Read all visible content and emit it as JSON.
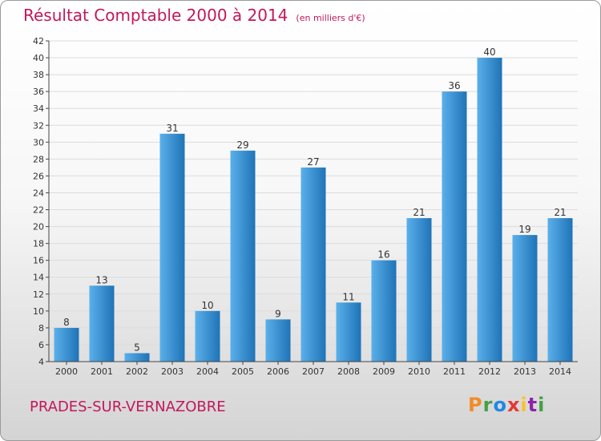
{
  "header": {
    "title": "Résultat Comptable 2000 à 2014",
    "unit": "(en milliers d'€)"
  },
  "footer": {
    "town": "PRADES-SUR-VERNAZOBRE",
    "logo": [
      "P",
      "r",
      "o",
      "x",
      "i",
      "t",
      "i"
    ],
    "logo_colors": [
      "#f28c28",
      "#43a047",
      "#1e88e5",
      "#e53935",
      "#fbc02d",
      "#8e24aa",
      "#43a047"
    ]
  },
  "colors": {
    "bar_light": "#5ab0ea",
    "bar_dark": "#1f73b7",
    "grid": "#dcdcdc",
    "axis": "#444444",
    "title": "#c2185b"
  },
  "chart_data": {
    "type": "bar",
    "title": "Résultat Comptable 2000 à 2014",
    "ylabel": "",
    "xlabel": "",
    "categories": [
      "2000",
      "2001",
      "2002",
      "2003",
      "2004",
      "2005",
      "2006",
      "2007",
      "2008",
      "2009",
      "2010",
      "2011",
      "2012",
      "2013",
      "2014"
    ],
    "values": [
      8,
      13,
      5,
      31,
      10,
      29,
      9,
      27,
      11,
      16,
      21,
      36,
      40,
      19,
      21
    ],
    "ylim": [
      4,
      42
    ],
    "yticks": [
      4,
      6,
      8,
      10,
      12,
      14,
      16,
      18,
      20,
      22,
      24,
      26,
      28,
      30,
      32,
      34,
      36,
      38,
      40,
      42
    ],
    "grid": true,
    "legend": "none"
  }
}
